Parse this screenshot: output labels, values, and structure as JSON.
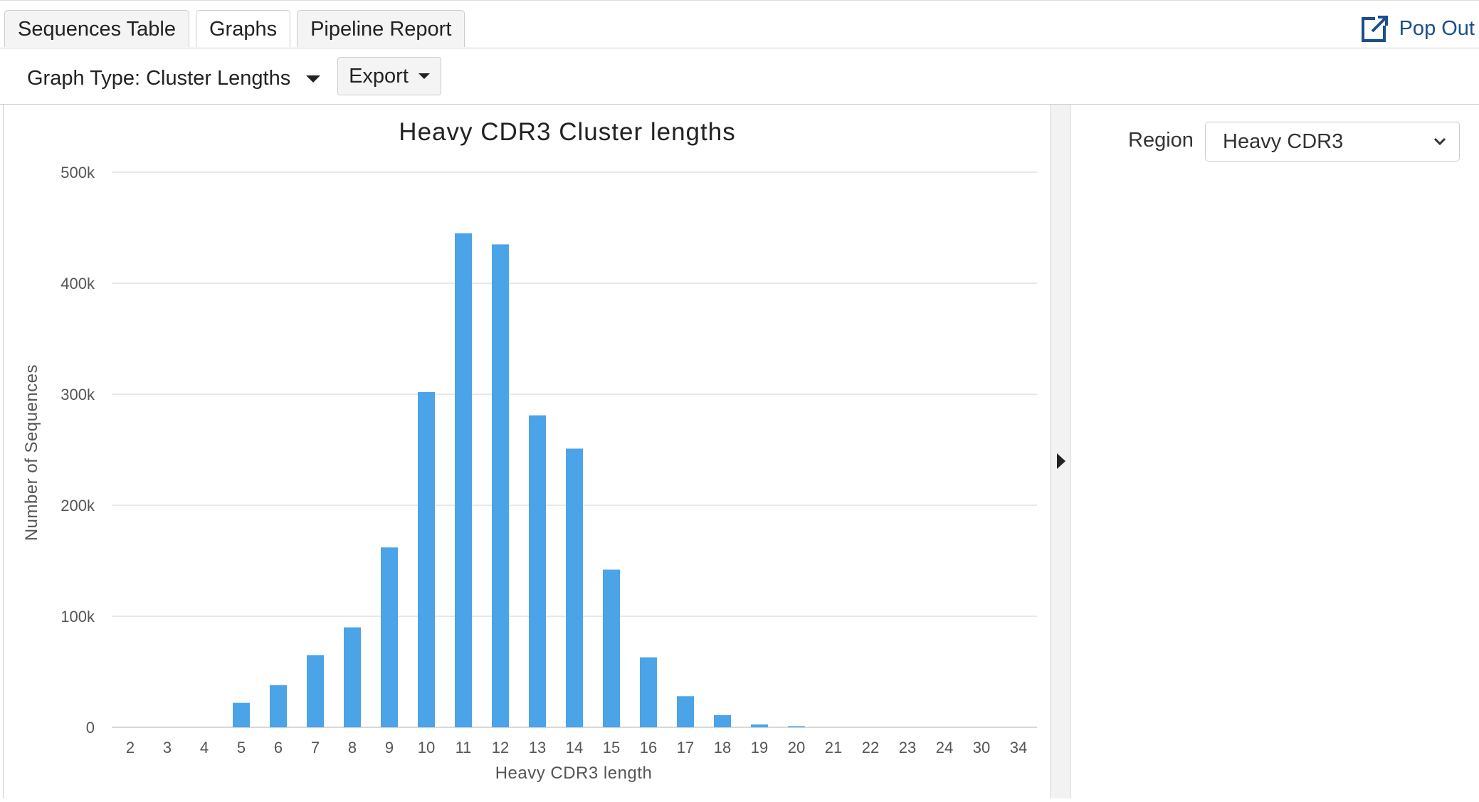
{
  "tabs": [
    {
      "label": "Sequences Table"
    },
    {
      "label": "Graphs"
    },
    {
      "label": "Pipeline Report"
    }
  ],
  "popout": {
    "label": "Pop Out"
  },
  "toolbar": {
    "graph_type_label": "Graph Type: Cluster Lengths",
    "export_label": "Export"
  },
  "sidebar": {
    "region_label": "Region",
    "region_value": "Heavy CDR3"
  },
  "colors": {
    "bar": "#4ba3e8",
    "link": "#1a4e8c",
    "grid": "#e0e0e0"
  },
  "chart_data": {
    "type": "bar",
    "title": "Heavy CDR3 Cluster lengths",
    "xlabel": "Heavy CDR3 length",
    "ylabel": "Number of Sequences",
    "categories": [
      "2",
      "3",
      "4",
      "5",
      "6",
      "7",
      "8",
      "9",
      "10",
      "11",
      "12",
      "13",
      "14",
      "15",
      "16",
      "17",
      "18",
      "19",
      "20",
      "21",
      "22",
      "23",
      "24",
      "30",
      "34"
    ],
    "values": [
      0,
      0,
      0,
      22000,
      38000,
      65000,
      90000,
      162000,
      302000,
      445000,
      435000,
      281000,
      251000,
      142000,
      63000,
      28000,
      11000,
      2500,
      1000,
      0,
      0,
      0,
      0,
      0,
      0
    ],
    "ylim": [
      0,
      500000
    ],
    "yticks": [
      {
        "value": 0,
        "label": "0"
      },
      {
        "value": 100000,
        "label": "100k"
      },
      {
        "value": 200000,
        "label": "200k"
      },
      {
        "value": 300000,
        "label": "300k"
      },
      {
        "value": 400000,
        "label": "400k"
      },
      {
        "value": 500000,
        "label": "500k"
      }
    ],
    "grid": true
  }
}
